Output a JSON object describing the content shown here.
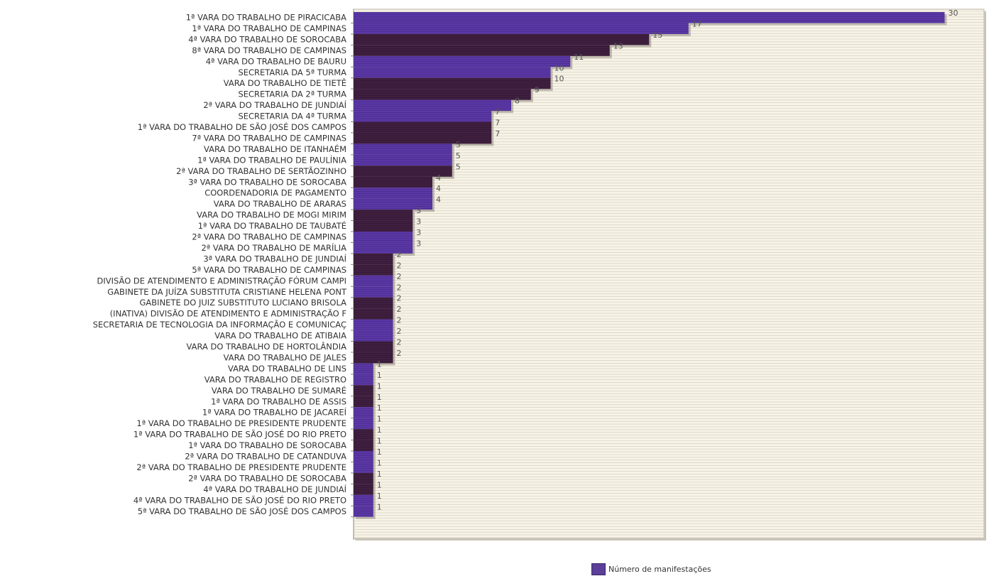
{
  "chart_data": {
    "type": "bar",
    "orientation": "horizontal",
    "categories": [
      "1ª VARA DO TRABALHO DE PIRACICABA",
      "1ª VARA DO TRABALHO DE CAMPINAS",
      "4ª VARA DO TRABALHO DE SOROCABA",
      "8ª VARA DO TRABALHO DE CAMPINAS",
      "4ª VARA DO TRABALHO DE BAURU",
      "SECRETARIA DA 5ª TURMA",
      "VARA DO TRABALHO DE TIETÊ",
      "SECRETARIA DA 2ª TURMA",
      "2ª VARA DO TRABALHO DE JUNDIAÍ",
      "SECRETARIA DA 4ª TURMA",
      "1ª VARA DO TRABALHO DE SÃO JOSÉ DOS CAMPOS",
      "7ª VARA DO TRABALHO DE CAMPINAS",
      "VARA DO TRABALHO DE ITANHAÉM",
      "1ª VARA DO TRABALHO DE PAULÍNIA",
      "2ª VARA DO TRABALHO DE SERTÃOZINHO",
      "3ª VARA DO TRABALHO DE SOROCABA",
      "COORDENADORIA DE PAGAMENTO",
      "VARA DO TRABALHO DE ARARAS",
      "VARA DO TRABALHO DE MOGI MIRIM",
      "1ª VARA DO TRABALHO DE TAUBATÉ",
      "2ª VARA DO TRABALHO DE CAMPINAS",
      "2ª VARA DO TRABALHO DE MARÍLIA",
      "3ª VARA DO TRABALHO DE JUNDIAÍ",
      "5ª VARA DO TRABALHO DE CAMPINAS",
      "DIVISÃO DE ATENDIMENTO E ADMINISTRAÇÃO FÓRUM CAMPI",
      "GABINETE DA JUÍZA SUBSTITUTA CRISTIANE HELENA PONT",
      "GABINETE DO JUIZ SUBSTITUTO LUCIANO BRISOLA",
      "(INATIVA) DIVISÃO DE ATENDIMENTO E ADMINISTRAÇÃO F",
      "SECRETARIA DE TECNOLOGIA DA INFORMAÇÃO E COMUNICAÇ",
      "VARA DO TRABALHO DE ATIBAIA",
      "VARA DO TRABALHO DE HORTOLÂNDIA",
      "VARA DO TRABALHO DE JALES",
      "VARA DO TRABALHO DE LINS",
      "VARA DO TRABALHO DE REGISTRO",
      "VARA DO TRABALHO DE SUMARÉ",
      "1ª VARA DO TRABALHO DE ASSIS",
      "1ª VARA DO TRABALHO DE JACAREÍ",
      "1ª VARA DO TRABALHO DE PRESIDENTE PRUDENTE",
      "1ª VARA DO TRABALHO DE SÃO JOSÉ DO RIO PRETO",
      "1ª VARA DO TRABALHO DE SOROCABA",
      "2ª VARA DO TRABALHO DE CATANDUVA",
      "2ª VARA DO TRABALHO DE PRESIDENTE PRUDENTE",
      "2ª VARA DO TRABALHO DE SOROCABA",
      "4ª VARA DO TRABALHO DE JUNDIAÍ",
      "4ª VARA DO TRABALHO DE SÃO JOSÉ DO RIO PRETO",
      "5ª VARA DO TRABALHO DE SÃO JOSÉ DOS CAMPOS"
    ],
    "series": [
      {
        "name": "Número de manifestações",
        "values": [
          30,
          17,
          15,
          13,
          11,
          10,
          10,
          9,
          8,
          7,
          7,
          7,
          5,
          5,
          5,
          4,
          4,
          4,
          3,
          3,
          3,
          3,
          2,
          2,
          2,
          2,
          2,
          2,
          2,
          2,
          2,
          2,
          1,
          1,
          1,
          1,
          1,
          1,
          1,
          1,
          1,
          1,
          1,
          1,
          1,
          1
        ]
      }
    ],
    "xlim": [
      0,
      32
    ],
    "grid": "horizontal",
    "legend_position": "bottom-center",
    "colors": {
      "bar_light": "#5a37a6",
      "bar_dark": "#3f1f3f",
      "plot_background": "#f7f3e6",
      "grid_line": "#cfcabd"
    }
  }
}
